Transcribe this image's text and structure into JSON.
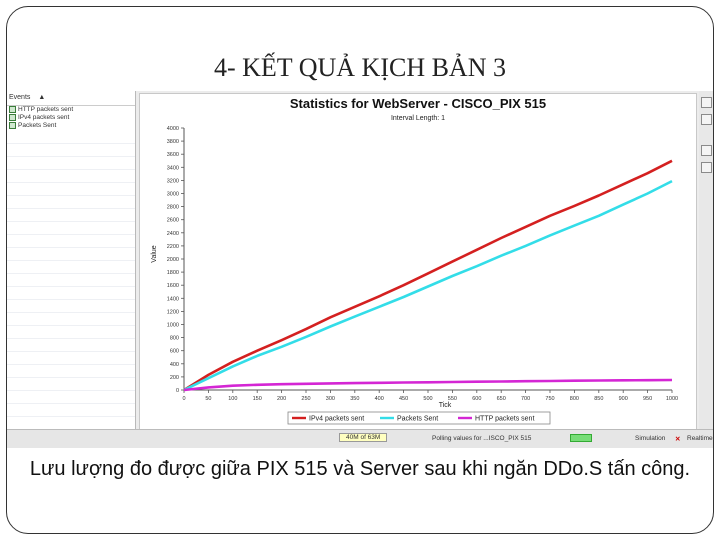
{
  "slide": {
    "title": "4- KẾT QUẢ KỊCH BẢN 3",
    "caption": "Lưu lượng đo được giữa PIX 515 và Server sau khi ngăn DDo.S tấn công."
  },
  "events_panel": {
    "title": "Events",
    "items": [
      "HTTP packets sent",
      "IPv4 packets sent",
      "Packets Sent"
    ]
  },
  "statusbar": {
    "zoom": "40M of 63M",
    "polling": "Polling values for ...ISCO_PIX 515",
    "simulation": "Simulation",
    "realtime": "Realtime"
  },
  "chart_data": {
    "type": "line",
    "title": "Statistics for WebServer - CISCO_PIX 515",
    "subtitle": "Interval Length: 1",
    "xlabel": "Tick",
    "ylabel": "Value",
    "xlim": [
      0,
      1000
    ],
    "ylim": [
      0,
      4000
    ],
    "xticks": [
      0,
      50,
      100,
      150,
      200,
      250,
      300,
      350,
      400,
      450,
      500,
      550,
      600,
      650,
      700,
      750,
      800,
      850,
      900,
      950,
      1000
    ],
    "yticks": [
      0,
      200,
      400,
      600,
      800,
      1000,
      1200,
      1400,
      1600,
      1800,
      2000,
      2200,
      2400,
      2600,
      2800,
      3000,
      3200,
      3400,
      3600,
      3800,
      4000
    ],
    "grid": false,
    "legend_position": "bottom",
    "x": [
      0,
      50,
      100,
      150,
      200,
      250,
      300,
      350,
      400,
      450,
      500,
      550,
      600,
      650,
      700,
      750,
      800,
      850,
      900,
      950,
      1000
    ],
    "series": [
      {
        "name": "IPv4 packets sent",
        "color": "#d42020",
        "values": [
          0,
          230,
          430,
          600,
          760,
          930,
          1110,
          1270,
          1430,
          1600,
          1780,
          1960,
          2140,
          2320,
          2490,
          2660,
          2810,
          2970,
          3140,
          3310,
          3500
        ]
      },
      {
        "name": "Packets Sent",
        "color": "#33dde8",
        "values": [
          0,
          180,
          360,
          520,
          660,
          810,
          970,
          1120,
          1270,
          1420,
          1580,
          1740,
          1890,
          2050,
          2200,
          2360,
          2510,
          2660,
          2830,
          3000,
          3190
        ]
      },
      {
        "name": "HTTP packets sent",
        "color": "#d426d4",
        "values": [
          0,
          40,
          65,
          80,
          88,
          94,
          100,
          106,
          110,
          114,
          118,
          122,
          126,
          130,
          134,
          138,
          142,
          145,
          148,
          150,
          152
        ]
      }
    ]
  }
}
